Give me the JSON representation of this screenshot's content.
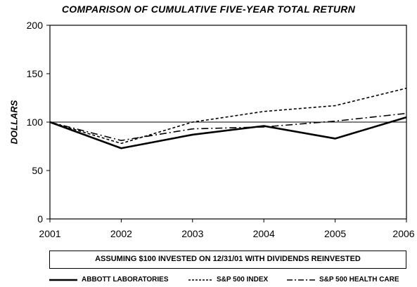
{
  "chart_data": {
    "type": "line",
    "title": "COMPARISON OF  CUMULATIVE  FIVE-YEAR TOTAL RETURN",
    "xlabel": "",
    "ylabel": "DOLLARS",
    "categories": [
      "2001",
      "2002",
      "2003",
      "2004",
      "2005",
      "2006"
    ],
    "ylim": [
      0,
      200
    ],
    "yticks": [
      0,
      50,
      100,
      150,
      200
    ],
    "reference_line": 100,
    "grid": false,
    "legend_position": "bottom",
    "series": [
      {
        "name": "ABBOTT LABORATORIES",
        "values": [
          100,
          73,
          87,
          96,
          83,
          105
        ],
        "style": "solid"
      },
      {
        "name": "S&P 500 INDEX",
        "values": [
          100,
          78,
          100,
          111,
          117,
          135
        ],
        "style": "dashed"
      },
      {
        "name": "S&P 500 HEALTH CARE",
        "values": [
          100,
          81,
          93,
          95,
          101,
          109
        ],
        "style": "dashdot"
      }
    ]
  },
  "note": "ASSUMING $100 INVESTED ON 12/31/01 WITH DIVIDENDS REINVESTED"
}
